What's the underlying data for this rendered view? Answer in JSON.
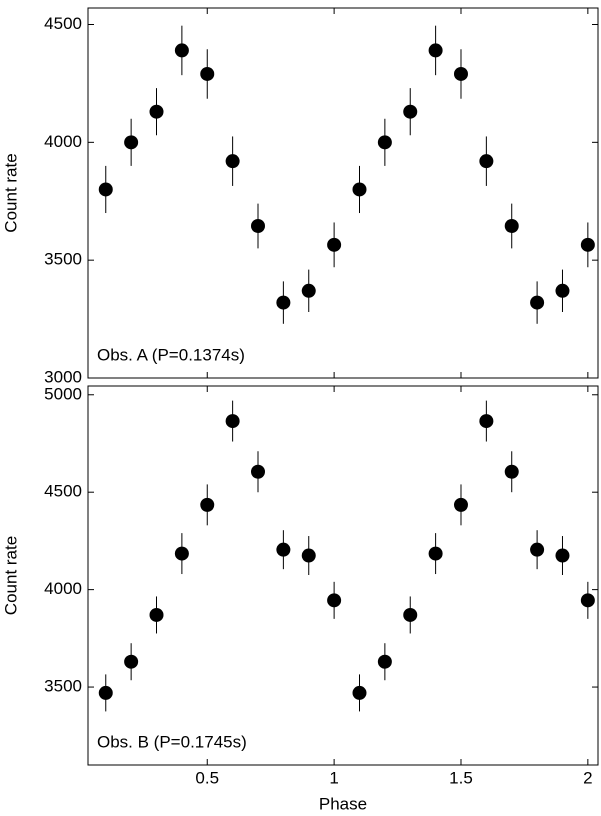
{
  "chart_data": [
    {
      "type": "scatter",
      "ylabel": "Count rate",
      "annotation": "Obs. A (P=0.1374s)",
      "color": "#000000",
      "x": [
        0.1,
        0.2,
        0.3,
        0.4,
        0.5,
        0.6,
        0.7,
        0.8,
        0.9,
        1.0,
        1.1,
        1.2,
        1.3,
        1.4,
        1.5,
        1.6,
        1.7,
        1.8,
        1.9,
        2.0
      ],
      "values": [
        3800,
        4000,
        4130,
        4390,
        4290,
        3920,
        3645,
        3320,
        3370,
        3565,
        3800,
        4000,
        4130,
        4390,
        4290,
        3920,
        3645,
        3320,
        3370,
        3565
      ],
      "errors": [
        100,
        100,
        100,
        105,
        105,
        105,
        95,
        90,
        90,
        95,
        100,
        100,
        100,
        105,
        105,
        105,
        95,
        90,
        90,
        95
      ],
      "xlim": [
        0.03,
        2.04
      ],
      "ylim": [
        3000,
        4570
      ],
      "xticks": [
        0.5,
        1,
        1.5,
        2
      ],
      "yticks": [
        3000,
        3500,
        4000,
        4500
      ],
      "show_xtick_labels": false
    },
    {
      "type": "scatter",
      "ylabel": "Count rate",
      "xlabel": "Phase",
      "annotation": "Obs. B (P=0.1745s)",
      "color": "#000000",
      "x": [
        0.1,
        0.2,
        0.3,
        0.4,
        0.5,
        0.6,
        0.7,
        0.8,
        0.9,
        1.0,
        1.1,
        1.2,
        1.3,
        1.4,
        1.5,
        1.6,
        1.7,
        1.8,
        1.9,
        2.0
      ],
      "values": [
        3470,
        3630,
        3870,
        4185,
        4435,
        4865,
        4605,
        4205,
        4175,
        3945,
        3470,
        3630,
        3870,
        4185,
        4435,
        4865,
        4605,
        4205,
        4175,
        3945
      ],
      "errors": [
        95,
        95,
        95,
        105,
        105,
        105,
        105,
        100,
        100,
        95,
        95,
        95,
        95,
        105,
        105,
        105,
        105,
        100,
        100,
        95
      ],
      "xlim": [
        0.03,
        2.04
      ],
      "ylim": [
        3100,
        5045
      ],
      "xticks": [
        0.5,
        1,
        1.5,
        2
      ],
      "yticks": [
        3500,
        4000,
        4500,
        5000
      ],
      "show_xtick_labels": true
    }
  ]
}
